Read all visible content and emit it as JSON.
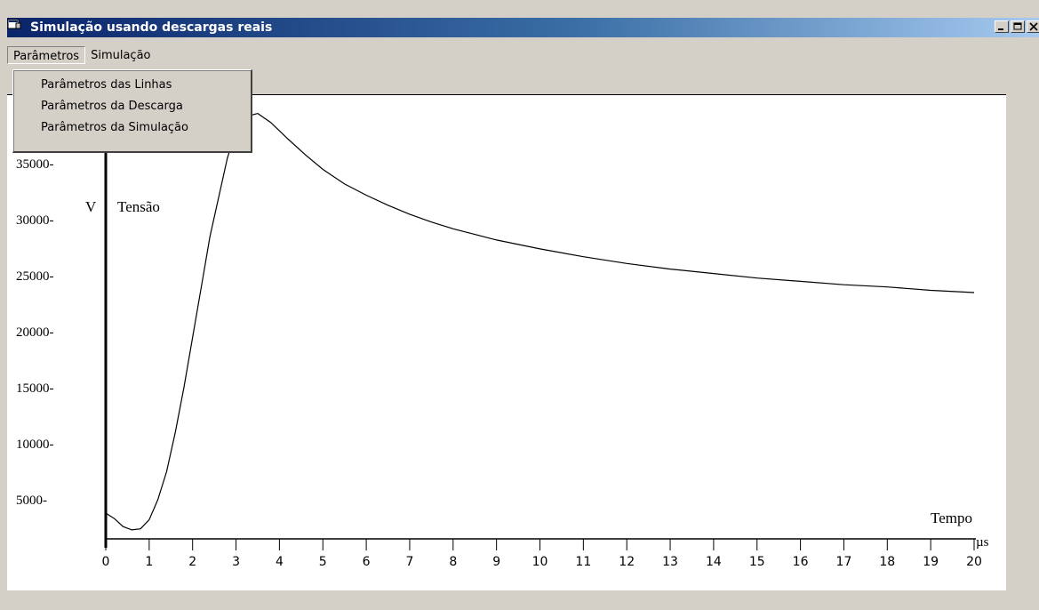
{
  "window": {
    "title": "Simulação usando descargas reais",
    "controls": [
      "minimize",
      "maximize",
      "close"
    ]
  },
  "menubar": {
    "items": [
      {
        "label": "Parâmetros",
        "open": true
      },
      {
        "label": "Simulação",
        "open": false
      }
    ]
  },
  "dropdown": {
    "items": [
      "Parâmetros das Linhas",
      "Parâmetros da Descarga",
      "Parâmetros da Simulação"
    ]
  },
  "chart_data": {
    "type": "line",
    "xlabel": "Tempo",
    "xunit": "µs",
    "ylabel": "Tensão",
    "yunit": "V",
    "xlim": [
      0,
      20
    ],
    "ylim": [
      1500,
      40500
    ],
    "x_ticks": [
      0,
      1,
      2,
      3,
      4,
      5,
      6,
      7,
      8,
      9,
      10,
      11,
      12,
      13,
      14,
      15,
      16,
      17,
      18,
      19,
      20
    ],
    "y_ticks": [
      5000,
      10000,
      15000,
      20000,
      25000,
      30000,
      35000
    ],
    "y_tick_labels": [
      "5000-",
      "10000-",
      "15000-",
      "20000-",
      "25000-",
      "30000-",
      "35000-"
    ],
    "series": [
      {
        "color": "#000000",
        "points": [
          [
            0.0,
            3800
          ],
          [
            0.2,
            3300
          ],
          [
            0.4,
            2600
          ],
          [
            0.6,
            2300
          ],
          [
            0.8,
            2400
          ],
          [
            1.0,
            3200
          ],
          [
            1.2,
            5000
          ],
          [
            1.4,
            7500
          ],
          [
            1.6,
            11000
          ],
          [
            1.8,
            15000
          ],
          [
            2.0,
            19500
          ],
          [
            2.2,
            24000
          ],
          [
            2.4,
            28500
          ],
          [
            2.6,
            32000
          ],
          [
            2.8,
            35500
          ],
          [
            3.0,
            38000
          ],
          [
            3.2,
            39200
          ],
          [
            3.5,
            39500
          ],
          [
            3.8,
            38700
          ],
          [
            4.2,
            37200
          ],
          [
            4.6,
            35800
          ],
          [
            5.0,
            34500
          ],
          [
            5.5,
            33200
          ],
          [
            6.0,
            32200
          ],
          [
            6.5,
            31300
          ],
          [
            7.0,
            30500
          ],
          [
            7.5,
            29800
          ],
          [
            8.0,
            29200
          ],
          [
            8.5,
            28700
          ],
          [
            9.0,
            28200
          ],
          [
            9.5,
            27800
          ],
          [
            10.0,
            27400
          ],
          [
            11.0,
            26700
          ],
          [
            12.0,
            26100
          ],
          [
            13.0,
            25600
          ],
          [
            14.0,
            25200
          ],
          [
            15.0,
            24800
          ],
          [
            16.0,
            24500
          ],
          [
            17.0,
            24200
          ],
          [
            18.0,
            24000
          ],
          [
            19.0,
            23700
          ],
          [
            20.0,
            23500
          ]
        ]
      }
    ]
  }
}
